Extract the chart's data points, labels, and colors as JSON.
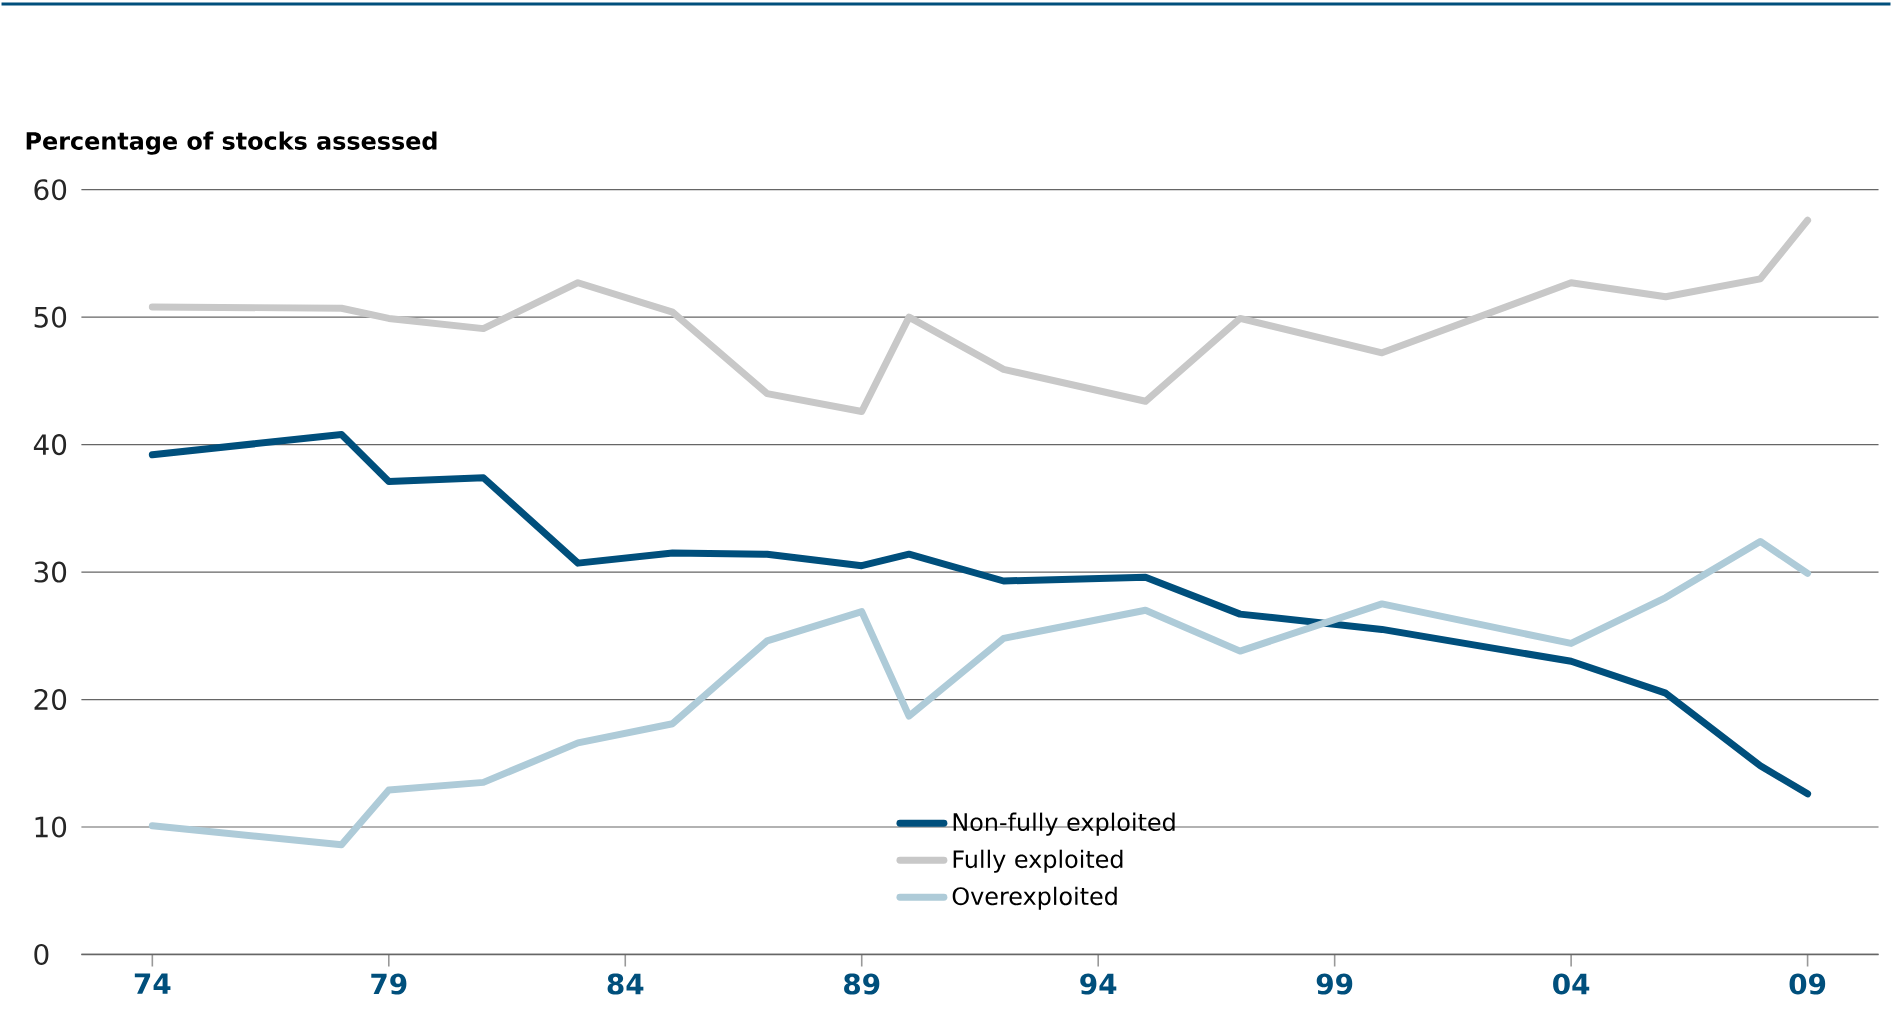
{
  "chart_data": {
    "type": "line",
    "ylabel": "Percentage of stocks assessed",
    "x": [
      1974,
      1978,
      1979,
      1981,
      1983,
      1985,
      1987,
      1989,
      1990,
      1992,
      1995,
      1997,
      2000,
      2004,
      2006,
      2008,
      2009
    ],
    "series": [
      {
        "name": "Non-fully exploited",
        "color": "#004f7c",
        "values": [
          39.2,
          40.8,
          37.1,
          37.4,
          30.7,
          31.5,
          31.4,
          30.5,
          31.4,
          29.3,
          29.6,
          26.7,
          25.5,
          23.0,
          20.5,
          14.8,
          12.6
        ]
      },
      {
        "name": "Fully exploited",
        "color": "#c8c8c8",
        "values": [
          50.8,
          50.7,
          49.9,
          49.1,
          52.7,
          50.4,
          44.0,
          42.6,
          50.0,
          45.9,
          43.4,
          49.9,
          47.2,
          52.7,
          51.6,
          53.0,
          57.6
        ]
      },
      {
        "name": "Overexploited",
        "color": "#aecbd8",
        "values": [
          10.1,
          8.6,
          12.9,
          13.5,
          16.6,
          18.1,
          24.6,
          26.9,
          18.7,
          24.8,
          27.0,
          23.8,
          27.5,
          24.4,
          28.0,
          32.4,
          29.9
        ]
      }
    ],
    "xlim": [
      1972.5,
      2010.5
    ],
    "ylim": [
      0,
      60
    ],
    "xticks": [
      {
        "value": 1974,
        "label": "74"
      },
      {
        "value": 1979,
        "label": "79"
      },
      {
        "value": 1984,
        "label": "84"
      },
      {
        "value": 1989,
        "label": "89"
      },
      {
        "value": 1994,
        "label": "94"
      },
      {
        "value": 1999,
        "label": "99"
      },
      {
        "value": 2004,
        "label": "04"
      },
      {
        "value": 2009,
        "label": "09"
      }
    ],
    "yticks": [
      0,
      10,
      20,
      30,
      40,
      50,
      60
    ],
    "grid": "y",
    "legend": "bottom",
    "marker": "none",
    "line_style": "solid"
  }
}
